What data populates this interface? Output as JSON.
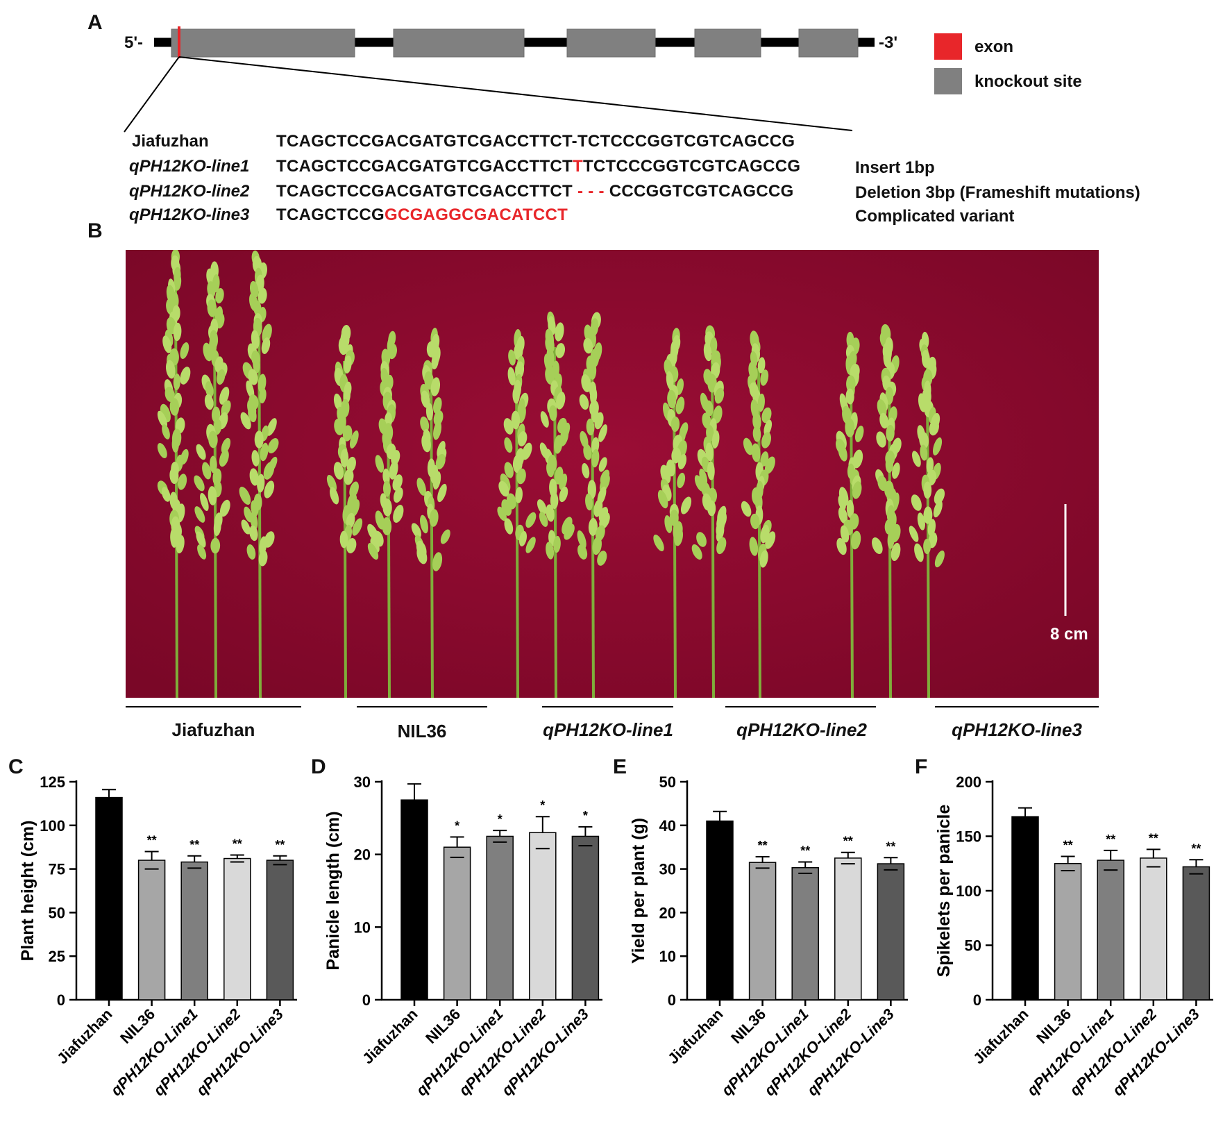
{
  "panelA": {
    "label": "A",
    "five_prime": "5'-",
    "three_prime": "-3'",
    "legend": [
      {
        "label": "exon",
        "color": "#e8262a"
      },
      {
        "label": "knockout site",
        "color": "#808080"
      }
    ],
    "rows": [
      {
        "name": "Jiafuzhan",
        "italic": false,
        "seq_pre": "TCAGCTCCGACGATGTCGACCTTCT",
        "seq_mark": "-",
        "seq_post": "TCTCCCGGTCGTCAGCCG",
        "mark_red": false,
        "note": ""
      },
      {
        "name": "qPH12KO-line1",
        "italic": true,
        "seq_pre": "TCAGCTCCGACGATGTCGACCTTCT",
        "seq_mark": "T",
        "seq_post": "TCTCCCGGTCGTCAGCCG",
        "mark_red": true,
        "note": "Insert 1bp"
      },
      {
        "name": "qPH12KO-line2",
        "italic": true,
        "seq_pre": "TCAGCTCCGACGATGTCGACCTTCT",
        "seq_mark": " - - - ",
        "seq_post": "CCCGGTCGTCAGCCG",
        "mark_red": true,
        "note": "Deletion 3bp (Frameshift mutations)"
      },
      {
        "name": "qPH12KO-line3",
        "italic": true,
        "seq_pre": "TCAGCTCCG",
        "seq_mark": "GCGAGGCGACATCCT",
        "seq_post": "",
        "mark_red": true,
        "note": "Complicated variant"
      }
    ]
  },
  "panelB": {
    "label": "B",
    "scale_bar": "8 cm",
    "groups": [
      {
        "label": "Jiafuzhan",
        "italic": false
      },
      {
        "label": "NIL36",
        "italic": false
      },
      {
        "label": "qPH12KO-line1",
        "italic": true
      },
      {
        "label": "qPH12KO-line2",
        "italic": true
      },
      {
        "label": "qPH12KO-line3",
        "italic": true
      }
    ]
  },
  "chart_data": [
    {
      "panel": "C",
      "type": "bar",
      "categories": [
        "Jiafuzhan",
        "NIL36",
        "qPH12KO-Line1",
        "qPH12KO-Line2",
        "qPH12KO-Line3"
      ],
      "values": [
        116,
        80,
        79,
        81,
        80
      ],
      "errors": [
        4.5,
        5,
        3.5,
        2,
        2.5
      ],
      "significance": [
        "",
        "**",
        "**",
        "**",
        "**"
      ],
      "ylabel": "Plant height (cm)",
      "ylim": [
        0,
        125
      ],
      "yticks": [
        0,
        25,
        50,
        75,
        100,
        125
      ],
      "colors": [
        "#000000",
        "#a6a6a6",
        "#7f7f7f",
        "#d9d9d9",
        "#595959"
      ]
    },
    {
      "panel": "D",
      "type": "bar",
      "categories": [
        "Jiafuzhan",
        "NIL36",
        "qPH12KO-Line1",
        "qPH12KO-Line2",
        "qPH12KO-Line3"
      ],
      "values": [
        27.5,
        21,
        22.5,
        23,
        22.5
      ],
      "errors": [
        2.2,
        1.4,
        0.8,
        2.2,
        1.3
      ],
      "significance": [
        "",
        "*",
        "*",
        "*",
        "*"
      ],
      "ylabel": "Panicle length (cm)",
      "ylim": [
        0,
        30
      ],
      "yticks": [
        0,
        10,
        20,
        30
      ],
      "colors": [
        "#000000",
        "#a6a6a6",
        "#7f7f7f",
        "#d9d9d9",
        "#595959"
      ]
    },
    {
      "panel": "E",
      "type": "bar",
      "categories": [
        "Jiafuzhan",
        "NIL36",
        "qPH12KO-Line1",
        "qPH12KO-Line2",
        "qPH12KO-Line3"
      ],
      "values": [
        41,
        31.5,
        30.3,
        32.5,
        31.2
      ],
      "errors": [
        2.2,
        1.3,
        1.3,
        1.3,
        1.4
      ],
      "significance": [
        "",
        "**",
        "**",
        "**",
        "**"
      ],
      "ylabel": "Yield per plant (g)",
      "ylim": [
        0,
        50
      ],
      "yticks": [
        0,
        10,
        20,
        30,
        40,
        50
      ],
      "colors": [
        "#000000",
        "#a6a6a6",
        "#7f7f7f",
        "#d9d9d9",
        "#595959"
      ]
    },
    {
      "panel": "F",
      "type": "bar",
      "categories": [
        "Jiafuzhan",
        "NIL36",
        "qPH12KO-Line1",
        "qPH12KO-Line2",
        "qPH12KO-Line3"
      ],
      "values": [
        168,
        125,
        128,
        130,
        122
      ],
      "errors": [
        8,
        6.5,
        9,
        8,
        6.5
      ],
      "significance": [
        "",
        "**",
        "**",
        "**",
        "**"
      ],
      "ylabel": "Spikelets per panicle",
      "ylim": [
        0,
        200
      ],
      "yticks": [
        0,
        50,
        100,
        150,
        200
      ],
      "colors": [
        "#000000",
        "#a6a6a6",
        "#7f7f7f",
        "#d9d9d9",
        "#595959"
      ]
    }
  ]
}
